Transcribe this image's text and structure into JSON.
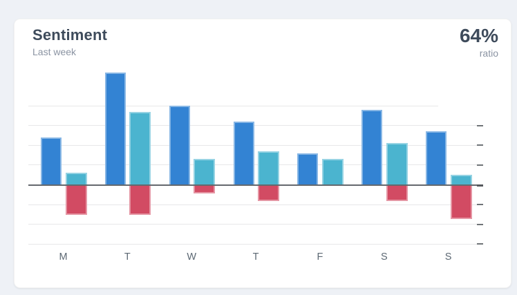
{
  "page": {
    "background_color": "#eef1f6"
  },
  "card": {
    "title": "Sentiment",
    "subtitle": "Last week",
    "ratio_value": "64%",
    "ratio_label": "ratio"
  },
  "chart_data": {
    "type": "bar",
    "title": "Sentiment",
    "subtitle": "Last week",
    "categories": [
      "M",
      "T",
      "W",
      "T",
      "F",
      "S",
      "S"
    ],
    "series": [
      {
        "name": "positive-primary",
        "color": "#3383d3",
        "values": [
          2.4,
          5.7,
          4.0,
          3.2,
          1.6,
          3.8,
          2.7
        ]
      },
      {
        "name": "positive-secondary",
        "color": "#4bb4cf",
        "values": [
          0.6,
          3.7,
          1.3,
          1.7,
          1.3,
          2.1,
          0.5
        ]
      },
      {
        "name": "negative",
        "color": "#d24b63",
        "values": [
          -1.5,
          -1.5,
          -0.4,
          -0.8,
          0,
          -0.8,
          -1.7
        ]
      }
    ],
    "xlabel": "",
    "ylabel": "",
    "ylim": [
      -3,
      4
    ],
    "y_tick_step": 1,
    "grid": true,
    "legend": false,
    "axis_tick_marks_side": "right",
    "colors": {
      "grid": "#e7e7e9",
      "zero_line": "#64686d",
      "tick": "#6f7377",
      "x_label": "#5c6873"
    }
  }
}
